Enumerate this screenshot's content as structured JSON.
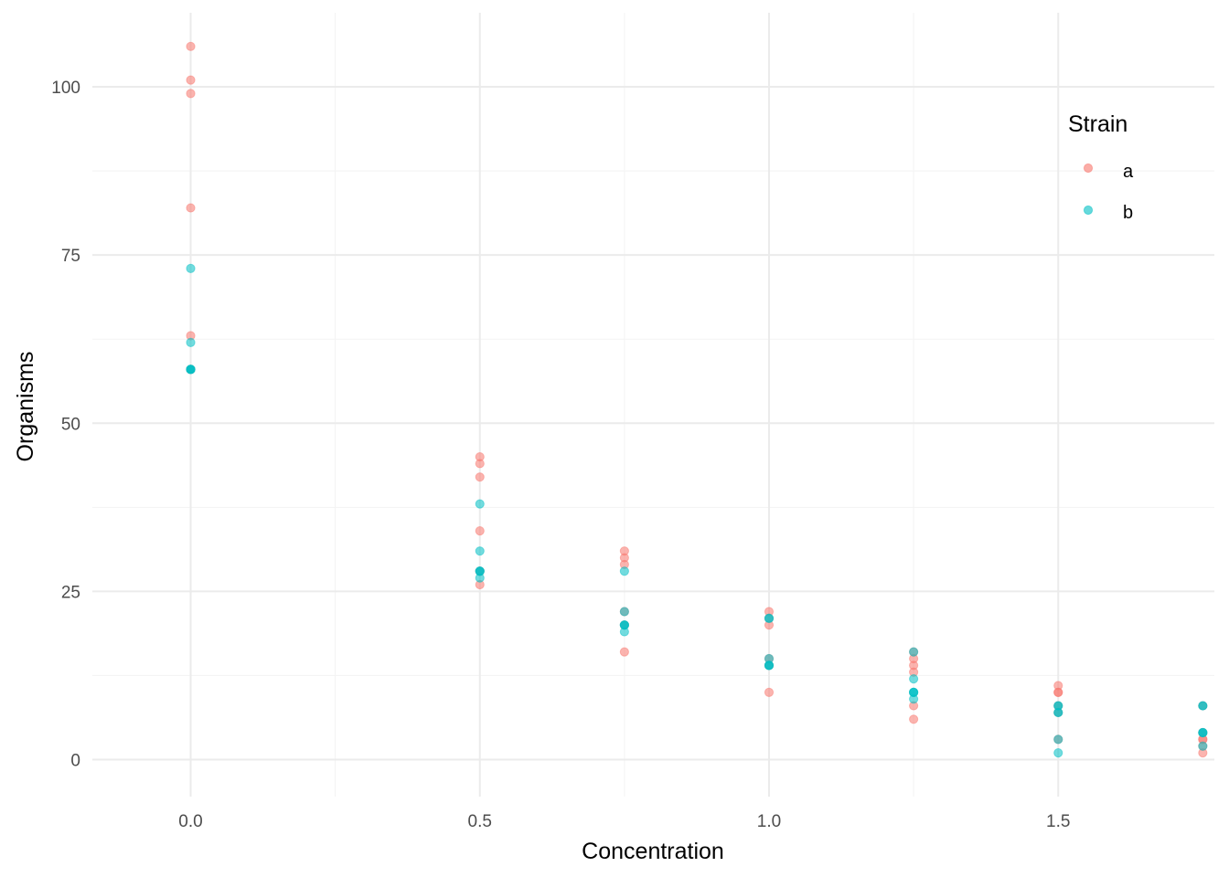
{
  "chart_data": {
    "type": "scatter",
    "title": "",
    "xlabel": "Concentration",
    "ylabel": "Organisms",
    "xlim": [
      -0.17,
      1.77
    ],
    "ylim": [
      -5.5,
      111
    ],
    "x_ticks": [
      0.0,
      0.5,
      1.0,
      1.5
    ],
    "x_tick_labels": [
      "0.0",
      "0.5",
      "1.0",
      "1.5"
    ],
    "y_ticks": [
      0,
      25,
      50,
      75,
      100
    ],
    "y_tick_labels": [
      "0",
      "25",
      "50",
      "75",
      "100"
    ],
    "grid": true,
    "legend": {
      "title": "Strain",
      "position": "top-right"
    },
    "series": [
      {
        "name": "a",
        "color": "#F8766D",
        "points": [
          [
            0,
            106
          ],
          [
            0,
            101
          ],
          [
            0,
            99
          ],
          [
            0,
            82
          ],
          [
            0,
            63
          ],
          [
            0,
            58
          ],
          [
            0.5,
            45
          ],
          [
            0.5,
            44
          ],
          [
            0.5,
            42
          ],
          [
            0.5,
            34
          ],
          [
            0.5,
            28
          ],
          [
            0.5,
            26
          ],
          [
            0.75,
            31
          ],
          [
            0.75,
            30
          ],
          [
            0.75,
            29
          ],
          [
            0.75,
            22
          ],
          [
            0.75,
            20
          ],
          [
            0.75,
            16
          ],
          [
            1.0,
            22
          ],
          [
            1.0,
            21
          ],
          [
            1.0,
            20
          ],
          [
            1.0,
            15
          ],
          [
            1.0,
            14
          ],
          [
            1.0,
            10
          ],
          [
            1.25,
            16
          ],
          [
            1.25,
            15
          ],
          [
            1.25,
            14
          ],
          [
            1.25,
            13
          ],
          [
            1.25,
            8
          ],
          [
            1.25,
            6
          ],
          [
            1.5,
            11
          ],
          [
            1.5,
            10
          ],
          [
            1.5,
            10
          ],
          [
            1.5,
            8
          ],
          [
            1.5,
            7
          ],
          [
            1.5,
            3
          ],
          [
            1.75,
            8
          ],
          [
            1.75,
            4
          ],
          [
            1.75,
            3
          ],
          [
            1.75,
            3
          ],
          [
            1.75,
            2
          ],
          [
            1.75,
            1
          ]
        ]
      },
      {
        "name": "b",
        "color": "#00BFC4",
        "points": [
          [
            0,
            73
          ],
          [
            0,
            62
          ],
          [
            0,
            58
          ],
          [
            0,
            58
          ],
          [
            0,
            58
          ],
          [
            0,
            58
          ],
          [
            0.5,
            38
          ],
          [
            0.5,
            31
          ],
          [
            0.5,
            28
          ],
          [
            0.5,
            28
          ],
          [
            0.5,
            27
          ],
          [
            0.5,
            28
          ],
          [
            0.75,
            28
          ],
          [
            0.75,
            22
          ],
          [
            0.75,
            20
          ],
          [
            0.75,
            20
          ],
          [
            0.75,
            19
          ],
          [
            0.75,
            20
          ],
          [
            1.0,
            21
          ],
          [
            1.0,
            21
          ],
          [
            1.0,
            15
          ],
          [
            1.0,
            14
          ],
          [
            1.0,
            14
          ],
          [
            1.0,
            14
          ],
          [
            1.25,
            16
          ],
          [
            1.25,
            12
          ],
          [
            1.25,
            10
          ],
          [
            1.25,
            10
          ],
          [
            1.25,
            9
          ],
          [
            1.25,
            10
          ],
          [
            1.5,
            8
          ],
          [
            1.5,
            7
          ],
          [
            1.5,
            7
          ],
          [
            1.5,
            3
          ],
          [
            1.5,
            1
          ],
          [
            1.5,
            8
          ],
          [
            1.75,
            8
          ],
          [
            1.75,
            4
          ],
          [
            1.75,
            4
          ],
          [
            1.75,
            2
          ],
          [
            1.75,
            8
          ],
          [
            1.75,
            4
          ]
        ]
      }
    ]
  }
}
